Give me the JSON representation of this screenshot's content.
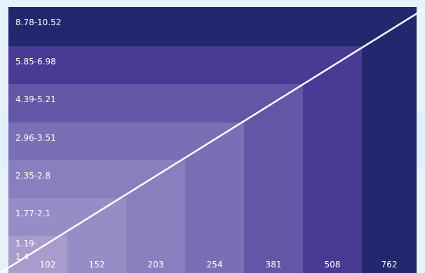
{
  "chart_data": {
    "type": "heatmap",
    "title": "",
    "xlabel": "",
    "ylabel": "",
    "x_categories": [
      "102",
      "152",
      "203",
      "254",
      "381",
      "508",
      "762"
    ],
    "y_categories": [
      "1.19-1.4",
      "1.77-2.1",
      "2.35-2.8",
      "2.96-3.51",
      "4.39-5.21",
      "5.85-6.98",
      "8.78-10.52"
    ],
    "diagonal_line": {
      "color": "#ffffff",
      "from": "bottom-left",
      "to": "top-right"
    },
    "palette": [
      "#a89ccc",
      "#978cc6",
      "#8a7fbe",
      "#7a6fb4",
      "#6456a7",
      "#4a3a96",
      "#23276e"
    ],
    "background_bands": [
      "#e6f3fa",
      "#dff0fa"
    ]
  }
}
